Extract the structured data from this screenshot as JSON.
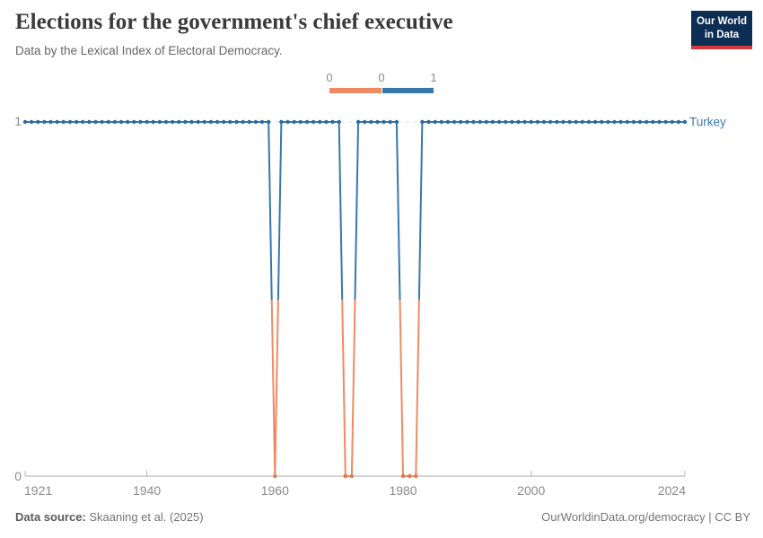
{
  "header": {
    "title": "Elections for the government's chief executive",
    "subtitle": "Data by the Lexical Index of Electoral Democracy.",
    "logo": {
      "line1": "Our World",
      "line2": "in Data",
      "bg_color": "#0c2d54",
      "accent_color": "#d7383e"
    }
  },
  "legend": {
    "labels": [
      "0",
      "0",
      "1"
    ],
    "segments": [
      {
        "value": "0",
        "color": "#ef8a62"
      },
      {
        "value": "1",
        "color": "#3877ac"
      }
    ]
  },
  "chart_data": {
    "type": "line",
    "title": "Elections for the government's chief executive",
    "xlabel": "",
    "ylabel": "",
    "x_range": [
      1921,
      2024
    ],
    "ylim": [
      0,
      1
    ],
    "x_ticks": [
      1921,
      1940,
      1960,
      1980,
      2000,
      2024
    ],
    "y_ticks": [
      1,
      0
    ],
    "grid": "dashed line at y=1, solid axis at y=0",
    "legend_position": "top-center",
    "entity_label": "Turkey",
    "zero_value_years": [
      1960,
      1971,
      1972,
      1980,
      1981,
      1982
    ],
    "series": [
      {
        "name": "Turkey",
        "x_start": 1921,
        "x_step": 1,
        "values": [
          1,
          1,
          1,
          1,
          1,
          1,
          1,
          1,
          1,
          1,
          1,
          1,
          1,
          1,
          1,
          1,
          1,
          1,
          1,
          1,
          1,
          1,
          1,
          1,
          1,
          1,
          1,
          1,
          1,
          1,
          1,
          1,
          1,
          1,
          1,
          1,
          1,
          1,
          1,
          0,
          1,
          1,
          1,
          1,
          1,
          1,
          1,
          1,
          1,
          1,
          0,
          0,
          1,
          1,
          1,
          1,
          1,
          1,
          1,
          0,
          0,
          0,
          1,
          1,
          1,
          1,
          1,
          1,
          1,
          1,
          1,
          1,
          1,
          1,
          1,
          1,
          1,
          1,
          1,
          1,
          1,
          1,
          1,
          1,
          1,
          1,
          1,
          1,
          1,
          1,
          1,
          1,
          1,
          1,
          1,
          1,
          1,
          1,
          1,
          1,
          1,
          1,
          1,
          1
        ]
      }
    ],
    "colors": {
      "value1_line": "#3877ac",
      "value1_marker": "#2d6b9e",
      "value0_line": "#ef8a62",
      "value0_marker": "#e4764c",
      "entity_label": "#3a7cb5"
    }
  },
  "footer": {
    "source_label": "Data source:",
    "source_value": "Skaaning et al. (2025)",
    "license": "OurWorldinData.org/democracy | CC BY"
  }
}
